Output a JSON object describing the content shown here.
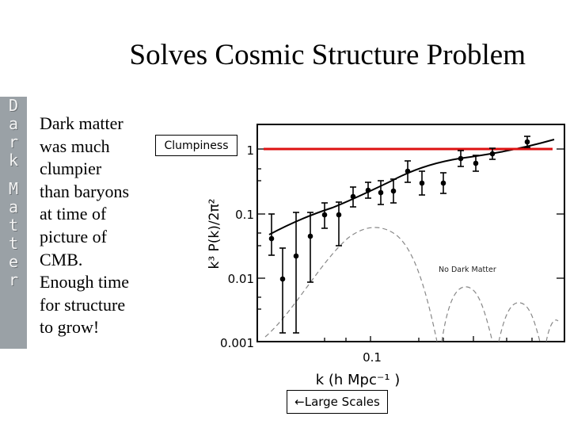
{
  "slide": {
    "title": "Solves Cosmic Structure Problem",
    "side_banner": [
      "D",
      "a",
      "r",
      "k",
      "M",
      "a",
      "t",
      "t",
      "e",
      "r"
    ],
    "body_lines": [
      "Dark matter",
      "was much",
      "clumpier",
      "than baryons",
      "at time of",
      "picture of",
      "CMB.",
      "Enough time",
      "for structure",
      "to grow!"
    ],
    "clumpiness_label": "Clumpiness",
    "large_scales_label": "←Large Scales"
  },
  "chart_data": {
    "type": "line",
    "ylabel": "k³ P(k)/2π²",
    "xlabel": "k  (h  Mpc⁻¹  )",
    "y_ticks": [
      "1",
      "0.1",
      "0.01",
      "0.001"
    ],
    "x_ticks": [
      "0.1"
    ],
    "annotation": "No Dark Matter",
    "reference_line_color": "#dd1111"
  }
}
